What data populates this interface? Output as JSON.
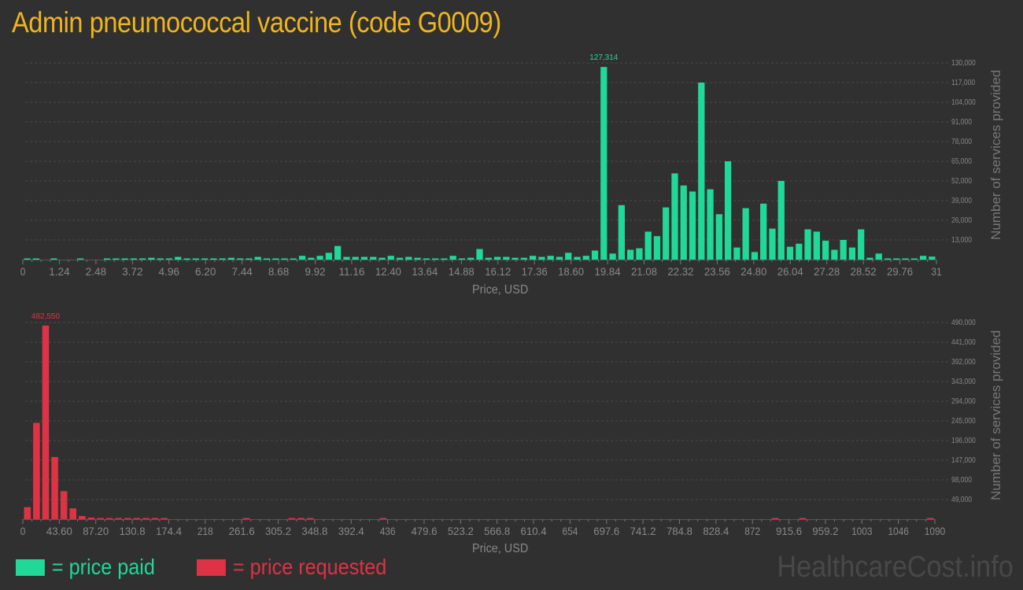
{
  "title": "Admin pneumococcal vaccine (code G0009)",
  "colors": {
    "paid": "#20d898",
    "requested": "#dd3344",
    "title": "#f0b51e",
    "grid": "#4a4a4a",
    "text": "#888888"
  },
  "legend": {
    "paid_label": "= price paid",
    "requested_label": "= price requested"
  },
  "watermark": "HealthcareCost.info",
  "chart_data": [
    {
      "type": "bar",
      "title": "Price paid",
      "xlabel": "Price, USD",
      "ylabel": "Number of services provided",
      "xlim": [
        0,
        31
      ],
      "ylim": [
        0,
        130000
      ],
      "x_ticks": [
        "0",
        "1.24",
        "2.48",
        "3.72",
        "4.96",
        "6.20",
        "7.44",
        "8.68",
        "9.92",
        "11.16",
        "12.40",
        "13.64",
        "14.88",
        "16.12",
        "17.36",
        "18.60",
        "19.84",
        "21.08",
        "22.32",
        "23.56",
        "24.80",
        "26.04",
        "27.28",
        "28.52",
        "29.76",
        "31"
      ],
      "y_ticks": [
        "13,000",
        "26,000",
        "39,000",
        "52,000",
        "65,000",
        "78,000",
        "91,000",
        "104,000",
        "117,000",
        "130,000"
      ],
      "peak_label": "127,314",
      "bin_width": 0.3444,
      "values": [
        600,
        600,
        0,
        600,
        0,
        0,
        600,
        0,
        0,
        600,
        600,
        600,
        600,
        600,
        1200,
        600,
        600,
        1800,
        600,
        600,
        600,
        600,
        600,
        1200,
        600,
        600,
        1800,
        600,
        600,
        600,
        600,
        2500,
        1200,
        2500,
        4500,
        9000,
        1800,
        1800,
        1800,
        1800,
        1200,
        2500,
        1200,
        1800,
        1200,
        600,
        600,
        600,
        2500,
        600,
        1200,
        7000,
        1200,
        1800,
        1800,
        1200,
        1200,
        2500,
        1800,
        2500,
        1800,
        4500,
        1800,
        2500,
        6000,
        127314,
        4000,
        36000,
        6500,
        7500,
        18500,
        15500,
        34500,
        57000,
        49000,
        45000,
        117000,
        46500,
        30000,
        65000,
        8000,
        34000,
        5000,
        37000,
        20500,
        52000,
        8500,
        10500,
        20000,
        18500,
        12500,
        6500,
        13000,
        8000,
        20000,
        1200,
        4000,
        500,
        500,
        500,
        500,
        2500,
        2000
      ]
    },
    {
      "type": "bar",
      "title": "Price requested",
      "xlabel": "Price, USD",
      "ylabel": "Number of services provided",
      "xlim": [
        0,
        1090
      ],
      "ylim": [
        0,
        490000
      ],
      "x_ticks": [
        "0",
        "43.60",
        "87.20",
        "130.8",
        "174.4",
        "218",
        "261.6",
        "305.2",
        "348.8",
        "392.4",
        "436",
        "479.6",
        "523.2",
        "566.8",
        "610.4",
        "654",
        "697.6",
        "741.2",
        "784.8",
        "828.4",
        "872",
        "915.6",
        "959.2",
        "1003",
        "1046",
        "1090"
      ],
      "y_ticks": [
        "49,000",
        "98,000",
        "147,000",
        "196,000",
        "245,000",
        "294,000",
        "343,000",
        "392,000",
        "441,000",
        "490,000"
      ],
      "peak_label": "482,550",
      "bin_width": 10.9,
      "values": [
        30000,
        240000,
        482550,
        155000,
        70000,
        27000,
        8000,
        4000,
        2500,
        800,
        800,
        800,
        800,
        800,
        800,
        800,
        0,
        0,
        0,
        0,
        0,
        0,
        0,
        0,
        800,
        0,
        0,
        0,
        0,
        800,
        800,
        800,
        0,
        0,
        0,
        0,
        0,
        0,
        0,
        800,
        0,
        0,
        0,
        0,
        0,
        0,
        0,
        0,
        0,
        0,
        0,
        0,
        0,
        0,
        0,
        0,
        0,
        0,
        0,
        0,
        0,
        0,
        0,
        0,
        0,
        0,
        0,
        0,
        0,
        0,
        0,
        0,
        0,
        0,
        0,
        0,
        0,
        0,
        0,
        0,
        0,
        0,
        800,
        0,
        0,
        800,
        0,
        0,
        0,
        0,
        0,
        0,
        0,
        0,
        0,
        0,
        0,
        0,
        0,
        800
      ]
    }
  ]
}
